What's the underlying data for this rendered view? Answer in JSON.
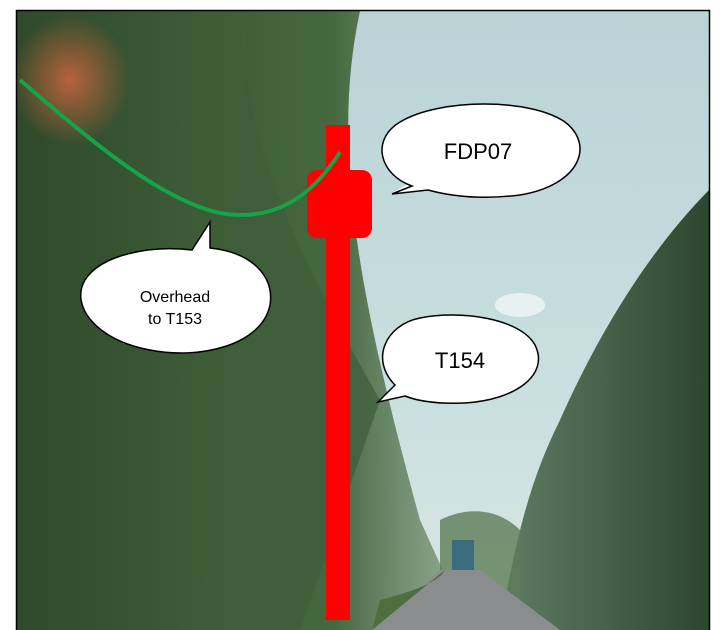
{
  "callouts": [
    {
      "lines": [
        "FDP07"
      ]
    },
    {
      "lines": [
        "Overhead",
        "to T153"
      ]
    },
    {
      "lines": [
        "T154"
      ]
    }
  ]
}
